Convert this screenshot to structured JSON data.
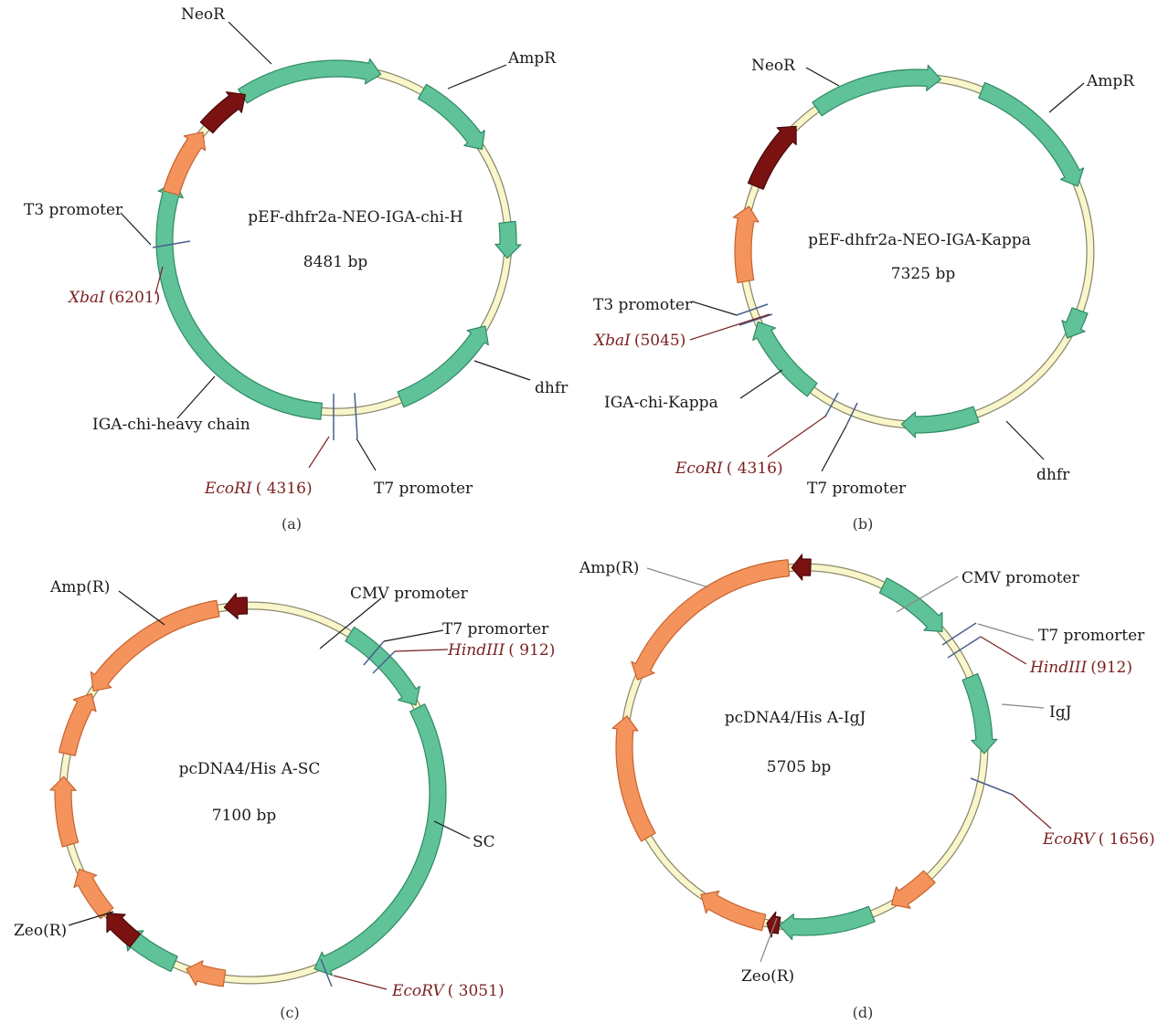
{
  "colors": {
    "backbone": "#faf6cc",
    "backbone_edge": "#8a8a6a",
    "green": "#5fc298",
    "green_edge": "#2f8a63",
    "orange": "#f5935d",
    "orange_edge": "#c8622e",
    "darkred": "#7a1212",
    "darkred_edge": "#4a0808",
    "site_line": "#4a5f8f",
    "site_text": "#7a1f1f",
    "leader": "#1a1a1a",
    "leader_gray": "#888888"
  },
  "maps": [
    {
      "id": "a",
      "caption": "(a)",
      "name": "pEF-dhfr2a-NEO-IGA-chi-H",
      "size": "8481 bp",
      "features": [
        {
          "label": "NeoR",
          "color": "green",
          "start": 327,
          "end": 15
        },
        {
          "label": "AmpR",
          "color": "green",
          "start": 30,
          "end": 58
        },
        {
          "label": "",
          "color": "green",
          "start": 84,
          "end": 96
        },
        {
          "label": "dhfr",
          "color": "green",
          "start": 158,
          "end": 120
        },
        {
          "label": "IGA-chi-heavy chain",
          "color": "green",
          "start": 185,
          "end": 290
        },
        {
          "label": "",
          "color": "orange",
          "start": 286,
          "end": 309
        },
        {
          "label": "",
          "color": "darkred",
          "start": 311,
          "end": 328
        }
      ],
      "sites": [
        {
          "label": "EcoRI",
          "pos": "( 4316)"
        },
        {
          "label": "XbaI",
          "pos": "(6201)"
        }
      ],
      "promoters": [
        "T3 promoter",
        "T7 promoter"
      ]
    },
    {
      "id": "b",
      "caption": "(b)",
      "name": "pEF-dhfr2a-NEO-IGA-Kappa",
      "size": "7325 bp",
      "features": [
        {
          "label": "NeoR",
          "color": "green",
          "start": 325,
          "end": 8
        },
        {
          "label": "AmpR",
          "color": "green",
          "start": 22,
          "end": 68
        },
        {
          "label": "",
          "color": "green",
          "start": 110,
          "end": 120
        },
        {
          "label": "dhfr",
          "color": "green",
          "start": 160,
          "end": 185
        },
        {
          "label": "IGA-chi-Kappa",
          "color": "green",
          "start": 217,
          "end": 246
        },
        {
          "label": "",
          "color": "orange",
          "start": 260,
          "end": 285
        },
        {
          "label": "",
          "color": "darkred",
          "start": 292,
          "end": 316
        }
      ],
      "sites": [
        {
          "label": "EcoRI",
          "pos": "( 4316)"
        },
        {
          "label": "XbaI",
          "pos": "(5045)"
        }
      ],
      "promoters": [
        "T3 promoter",
        "T7 promoter"
      ]
    },
    {
      "id": "c",
      "caption": "(c)",
      "name": "pcDNA4/His A-SC",
      "size": "7100 bp",
      "features": [
        {
          "label": "CMV promoter",
          "color": "green",
          "start": 32,
          "end": 62
        },
        {
          "label": "SC",
          "color": "green",
          "start": 63,
          "end": 160
        },
        {
          "label": "",
          "color": "orange",
          "start": 188,
          "end": 200
        },
        {
          "label": "",
          "color": "green",
          "start": 204,
          "end": 222
        },
        {
          "label": "",
          "color": "darkred",
          "start": 218,
          "end": 230
        },
        {
          "label": "Zeo(R)",
          "color": "orange",
          "start": 230,
          "end": 246
        },
        {
          "label": "",
          "color": "orange",
          "start": 254,
          "end": 275
        },
        {
          "label": "",
          "color": "orange",
          "start": 282,
          "end": 302
        },
        {
          "label": "Amp(R)",
          "color": "orange",
          "start": 350,
          "end": 303
        },
        {
          "label": "",
          "color": "darkred",
          "start": 359,
          "end": 352
        }
      ],
      "sites": [
        {
          "label": "HindIII",
          "pos": "( 912)"
        },
        {
          "label": "EcoRV",
          "pos": "( 3051)"
        }
      ],
      "promoters": [
        "T7 promorter"
      ]
    },
    {
      "id": "d",
      "caption": "(d)",
      "name": "pcDNA4/His A-IgJ",
      "size": "5705 bp",
      "features": [
        {
          "label": "CMV promoter",
          "color": "green",
          "start": 26,
          "end": 50
        },
        {
          "label": "IgJ",
          "color": "green",
          "start": 67,
          "end": 92
        },
        {
          "label": "",
          "color": "orange",
          "start": 136,
          "end": 151
        },
        {
          "label": "",
          "color": "green",
          "start": 158,
          "end": 188
        },
        {
          "label": "",
          "color": "darkred",
          "start": 188,
          "end": 192
        },
        {
          "label": "Zeo(R)",
          "color": "orange",
          "start": 193,
          "end": 215
        },
        {
          "label": "",
          "color": "orange",
          "start": 240,
          "end": 280
        },
        {
          "label": "Amp(R)",
          "color": "orange",
          "start": 355,
          "end": 292
        },
        {
          "label": "",
          "color": "darkred",
          "start": 2,
          "end": 356
        }
      ],
      "sites": [
        {
          "label": "HindIII",
          "pos": "(912)"
        },
        {
          "label": "EcoRV",
          "pos": "( 1656)"
        }
      ],
      "promoters": [
        "T7 promorter"
      ]
    }
  ]
}
